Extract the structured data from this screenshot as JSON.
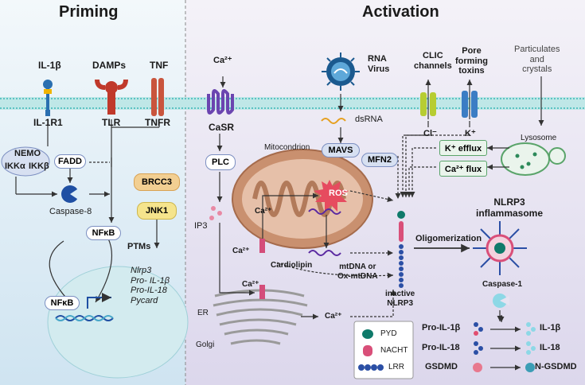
{
  "panels": {
    "priming": "Priming",
    "activation": "Activation"
  },
  "priming": {
    "ligands": {
      "il1b": "IL-1β",
      "damps": "DAMPs",
      "tnf": "TNF"
    },
    "receptors": {
      "il1r1": "IL-1R1",
      "tlr": "TLR",
      "tnfr": "TNFR"
    },
    "complex": {
      "nemo": "NEMO",
      "ikka": "IKKα",
      "ikkb": "IKKβ",
      "fadd": "FADD"
    },
    "caspase8": "Caspase-8",
    "brcc3": "BRCC3",
    "jnk1": "JNK1",
    "nfkb": "NFκB",
    "ptms": "PTMs",
    "nfkb_nucleus": "NFκB",
    "genes": [
      "Nlrp3",
      "Pro- IL-1β",
      "Pro-IL-18",
      "Pycard"
    ]
  },
  "activation": {
    "ca_top": "Ca²⁺",
    "casr": "CaSR",
    "plc": "PLC",
    "ip3": "IP3",
    "ca_er1": "Ca²⁺",
    "ca_er2": "Ca²⁺",
    "ca_mito": "Ca²⁺",
    "er": "ER",
    "golgi": "Golgi",
    "ca_golgi": "Ca²⁺",
    "rna_virus": "RNA\nVirus",
    "dsrna": "dsRNA",
    "mitochondrion": "Mitocondrion",
    "mavs": "MAVS",
    "mfn2": "MFN2",
    "ros": "ROS",
    "cardiolipin": "Cardiolipin",
    "mtdna": "mtDNA or\nOx-mtDNA",
    "clic": "CLIC\nchannels",
    "cl": "Cl⁻",
    "pore": "Pore\nforming\ntoxins",
    "k": "K⁺",
    "k_efflux": "K⁺ efflux",
    "ca_flux": "Ca²⁺ flux",
    "particulates": "Particulates\nand\ncrystals",
    "lysosome": "Lysosome",
    "inactive_nlrp3": "inactive\nNLRP3",
    "oligomerization": "Oligomerization",
    "inflammasome": "NLRP3\ninflammasome",
    "caspase1": "Caspase-1",
    "legend": {
      "pyd": "PYD",
      "nacht": "NACHT",
      "lrr": "LRR"
    },
    "products": [
      {
        "from": "Pro-IL-1β",
        "to": "IL-1β"
      },
      {
        "from": "Pro-IL-18",
        "to": "IL-18"
      },
      {
        "from": "GSDMD",
        "to": "N-GSDMD"
      }
    ]
  },
  "colors": {
    "priming_bg": "#dcedf7",
    "activation_bg": "#e6e3f1",
    "membrane": "#7fd6d6",
    "mito": "#c9906f",
    "ros": "#e64b5f",
    "receptor_orange": "#c9553d",
    "casr_purple": "#8a63c9"
  }
}
